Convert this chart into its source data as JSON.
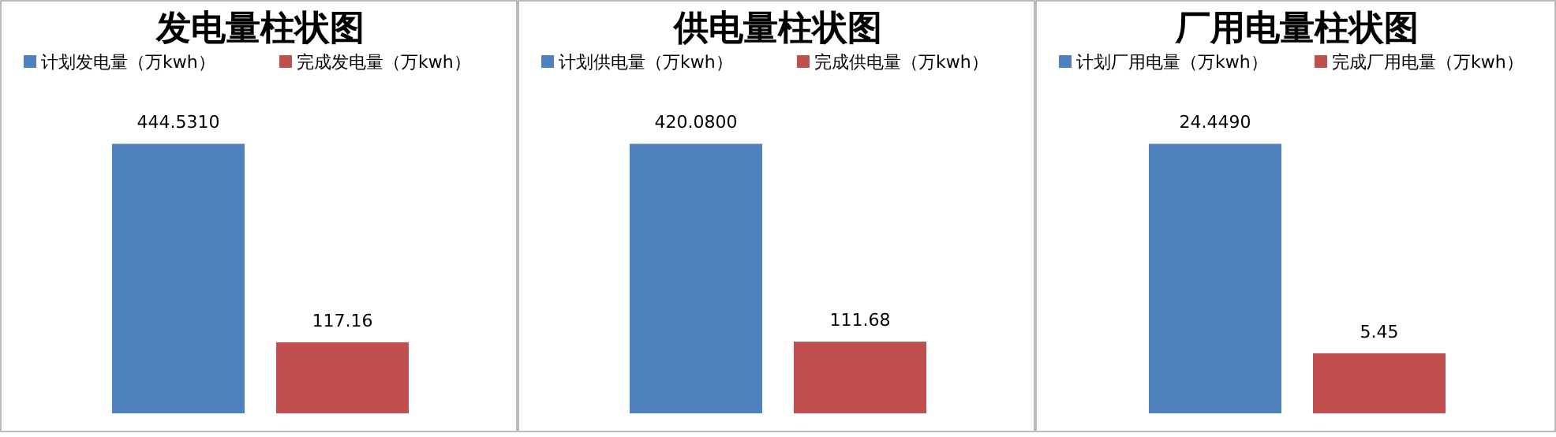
{
  "chart_data": [
    {
      "type": "bar",
      "title": "发电量柱状图",
      "categories": [
        null
      ],
      "legend": "top",
      "series": [
        {
          "name": "计划发电量（万kwh）",
          "color": "#4f81bd",
          "values": [
            444.531
          ],
          "value_labels": [
            "444.5310"
          ]
        },
        {
          "name": "完成发电量（万kwh）",
          "color": "#c0504d",
          "values": [
            117.16
          ],
          "value_labels": [
            "117.16"
          ]
        }
      ]
    },
    {
      "type": "bar",
      "title": "供电量柱状图",
      "categories": [
        null
      ],
      "legend": "top",
      "series": [
        {
          "name": "计划供电量（万kwh）",
          "color": "#4f81bd",
          "values": [
            420.08
          ],
          "value_labels": [
            "420.0800"
          ]
        },
        {
          "name": "完成供电量（万kwh）",
          "color": "#c0504d",
          "values": [
            111.68
          ],
          "value_labels": [
            "111.68"
          ]
        }
      ]
    },
    {
      "type": "bar",
      "title": "厂用电量柱状图",
      "categories": [
        null
      ],
      "legend": "top",
      "series": [
        {
          "name": "计划厂用电量（万kwh）",
          "color": "#4f81bd",
          "values": [
            24.449
          ],
          "value_labels": [
            "24.4490"
          ]
        },
        {
          "name": "完成厂用电量（万kwh）",
          "color": "#c0504d",
          "values": [
            5.45
          ],
          "value_labels": [
            "5.45"
          ]
        }
      ]
    }
  ]
}
